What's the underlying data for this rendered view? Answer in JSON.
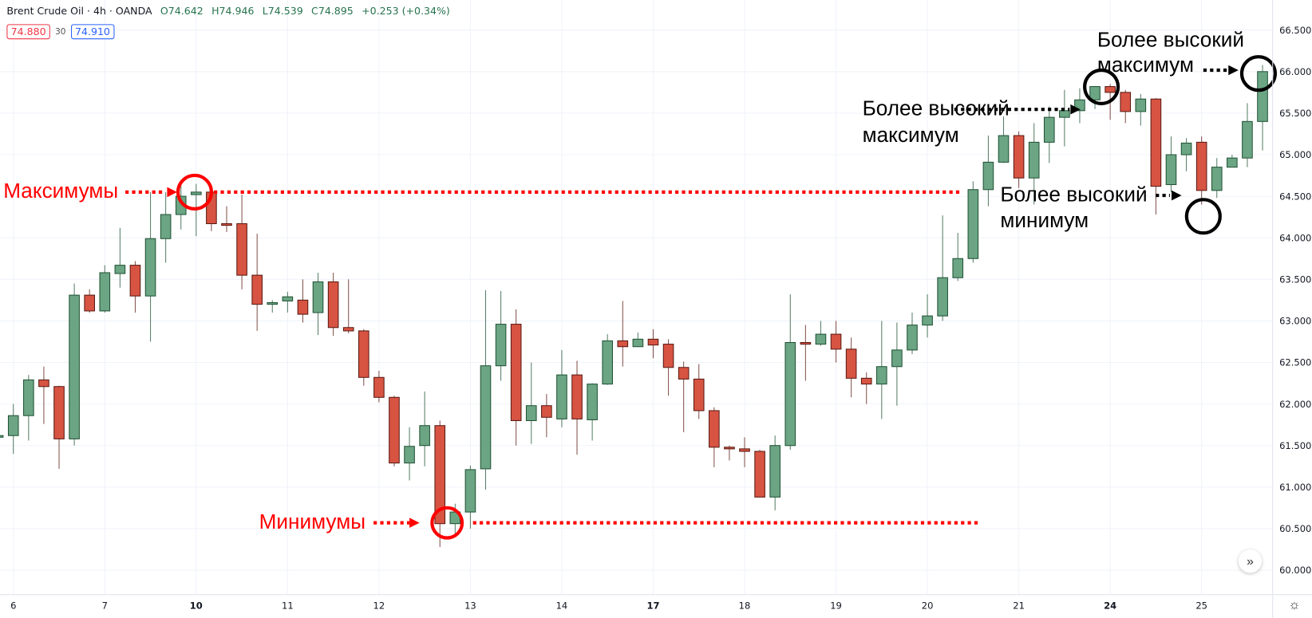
{
  "header": {
    "symbol": "Brent Crude Oil · 4h · OANDA",
    "open": "O74.642",
    "high": "H74.946",
    "low": "L74.539",
    "close": "C74.895",
    "change": "+0.253 (+0.34%)",
    "bid": "74.880",
    "spread": "30",
    "ask": "74.910"
  },
  "annotations": {
    "highs": "Максимумы",
    "lows": "Минимумы",
    "hh1_line1": "Более высокий",
    "hh1_line2": "максимум",
    "hh2_line1": "Более высокий",
    "hh2_line2": "максимум",
    "hl_line1": "Более высокий",
    "hl_line2": "минимум"
  },
  "controls": {
    "scroll_icon": "»",
    "settings_icon": "☼"
  },
  "colors": {
    "up": "#6ba583",
    "up_border": "#225437",
    "down": "#d75442",
    "down_border": "#5b1a13",
    "highlight_red": "#ff0000",
    "highlight_black": "#000000"
  },
  "chart_data": {
    "type": "candlestick",
    "title": "Brent Crude Oil · 4h · OANDA",
    "ylim": [
      59.7,
      66.85
    ],
    "y_ticks": [
      "66.500",
      "66.000",
      "65.500",
      "65.000",
      "64.500",
      "64.000",
      "63.500",
      "63.000",
      "62.500",
      "62.000",
      "61.500",
      "61.000",
      "60.500",
      "60.000"
    ],
    "x_ticks": [
      {
        "label": "6",
        "index": 1
      },
      {
        "label": "7",
        "index": 7
      },
      {
        "label": "10",
        "index": 13,
        "major": true
      },
      {
        "label": "11",
        "index": 19
      },
      {
        "label": "12",
        "index": 25
      },
      {
        "label": "13",
        "index": 31
      },
      {
        "label": "14",
        "index": 37
      },
      {
        "label": "17",
        "index": 43,
        "major": true
      },
      {
        "label": "18",
        "index": 49
      },
      {
        "label": "19",
        "index": 55
      },
      {
        "label": "20",
        "index": 61
      },
      {
        "label": "21",
        "index": 67
      },
      {
        "label": "24",
        "index": 73,
        "major": true
      },
      {
        "label": "25",
        "index": 79
      }
    ],
    "ohlc_fields": [
      "open",
      "high",
      "low",
      "close"
    ],
    "candles": [
      [
        61.6,
        61.63,
        61.59,
        61.62
      ],
      [
        61.62,
        62.0,
        61.4,
        61.86
      ],
      [
        61.86,
        62.35,
        61.56,
        62.29
      ],
      [
        62.29,
        62.45,
        61.76,
        62.21
      ],
      [
        62.21,
        62.22,
        61.22,
        61.58
      ],
      [
        61.58,
        63.45,
        61.5,
        63.31
      ],
      [
        63.31,
        63.38,
        63.1,
        63.12
      ],
      [
        63.12,
        63.67,
        63.1,
        63.58
      ],
      [
        63.57,
        64.12,
        63.4,
        63.67
      ],
      [
        63.67,
        63.72,
        63.1,
        63.3
      ],
      [
        63.3,
        64.55,
        62.75,
        63.99
      ],
      [
        63.99,
        64.55,
        63.7,
        64.28
      ],
      [
        64.28,
        64.65,
        64.1,
        64.5
      ],
      [
        64.52,
        64.65,
        64.02,
        64.55
      ],
      [
        64.55,
        64.55,
        64.08,
        64.17
      ],
      [
        64.17,
        64.38,
        64.07,
        64.15
      ],
      [
        64.17,
        64.52,
        63.38,
        63.55
      ],
      [
        63.55,
        64.05,
        62.88,
        63.2
      ],
      [
        63.2,
        63.25,
        63.1,
        63.22
      ],
      [
        63.24,
        63.35,
        63.1,
        63.29
      ],
      [
        63.25,
        63.5,
        62.98,
        63.08
      ],
      [
        63.1,
        63.58,
        62.83,
        63.47
      ],
      [
        63.47,
        63.58,
        62.82,
        62.92
      ],
      [
        62.92,
        63.5,
        62.85,
        62.88
      ],
      [
        62.88,
        62.9,
        62.22,
        62.32
      ],
      [
        62.32,
        62.4,
        62.02,
        62.08
      ],
      [
        62.08,
        62.1,
        61.25,
        61.29
      ],
      [
        61.29,
        61.72,
        61.08,
        61.49
      ],
      [
        61.5,
        62.15,
        61.25,
        61.74
      ],
      [
        61.74,
        61.8,
        60.28,
        60.56
      ],
      [
        60.56,
        60.8,
        60.42,
        60.7
      ],
      [
        60.7,
        61.26,
        60.5,
        61.21
      ],
      [
        61.22,
        63.37,
        60.97,
        62.46
      ],
      [
        62.46,
        63.36,
        62.28,
        62.96
      ],
      [
        62.96,
        63.14,
        61.5,
        61.8
      ],
      [
        61.8,
        62.5,
        61.52,
        61.98
      ],
      [
        61.98,
        62.12,
        61.6,
        61.84
      ],
      [
        61.82,
        62.65,
        61.72,
        62.35
      ],
      [
        62.35,
        62.52,
        61.39,
        61.82
      ],
      [
        61.81,
        62.25,
        61.56,
        62.24
      ],
      [
        62.24,
        62.84,
        62.23,
        62.76
      ],
      [
        62.76,
        63.24,
        62.45,
        62.69
      ],
      [
        62.69,
        62.86,
        62.7,
        62.78
      ],
      [
        62.78,
        62.9,
        62.55,
        62.71
      ],
      [
        62.72,
        62.78,
        62.1,
        62.44
      ],
      [
        62.44,
        62.51,
        61.66,
        62.3
      ],
      [
        62.3,
        62.48,
        61.82,
        61.92
      ],
      [
        61.92,
        61.96,
        61.24,
        61.48
      ],
      [
        61.48,
        61.5,
        61.32,
        61.46
      ],
      [
        61.46,
        61.6,
        61.24,
        61.43
      ],
      [
        61.43,
        61.45,
        60.88,
        60.88
      ],
      [
        60.88,
        61.62,
        60.72,
        61.5
      ],
      [
        61.5,
        63.32,
        61.45,
        62.74
      ],
      [
        62.74,
        62.95,
        62.28,
        62.72
      ],
      [
        62.72,
        63.0,
        62.7,
        62.84
      ],
      [
        62.84,
        63.0,
        62.5,
        62.66
      ],
      [
        62.66,
        62.8,
        62.08,
        62.31
      ],
      [
        62.31,
        62.38,
        62.0,
        62.24
      ],
      [
        62.24,
        63.0,
        61.82,
        62.45
      ],
      [
        62.45,
        62.98,
        61.98,
        62.65
      ],
      [
        62.65,
        63.1,
        62.6,
        62.95
      ],
      [
        62.95,
        63.32,
        62.8,
        63.06
      ],
      [
        63.06,
        64.27,
        63.0,
        63.52
      ],
      [
        63.52,
        64.06,
        63.48,
        63.75
      ],
      [
        63.75,
        64.68,
        63.7,
        64.58
      ],
      [
        64.58,
        65.23,
        64.38,
        64.91
      ],
      [
        64.91,
        65.46,
        64.9,
        65.23
      ],
      [
        65.23,
        65.28,
        64.6,
        64.72
      ],
      [
        64.72,
        65.38,
        64.4,
        65.15
      ],
      [
        65.15,
        65.58,
        64.9,
        65.45
      ],
      [
        65.45,
        65.78,
        65.1,
        65.53
      ],
      [
        65.53,
        65.8,
        65.38,
        65.66
      ],
      [
        65.66,
        65.82,
        65.55,
        65.82
      ],
      [
        65.82,
        65.85,
        65.42,
        65.75
      ],
      [
        65.75,
        65.78,
        65.38,
        65.52
      ],
      [
        65.52,
        65.73,
        65.35,
        65.67
      ],
      [
        65.67,
        65.68,
        64.28,
        64.62
      ],
      [
        64.64,
        65.22,
        64.55,
        65.0
      ],
      [
        65.0,
        65.2,
        64.8,
        65.14
      ],
      [
        65.15,
        65.22,
        64.4,
        64.57
      ],
      [
        64.57,
        64.96,
        64.48,
        64.85
      ],
      [
        64.85,
        65.0,
        64.85,
        64.96
      ],
      [
        64.96,
        65.62,
        64.85,
        65.4
      ],
      [
        65.4,
        66.08,
        65.05,
        66.0
      ]
    ],
    "levels": [
      {
        "name": "highs",
        "price": 64.55,
        "color": "#ff0000"
      },
      {
        "name": "lows",
        "price": 60.57,
        "color": "#ff0000"
      }
    ],
    "grid": true
  }
}
